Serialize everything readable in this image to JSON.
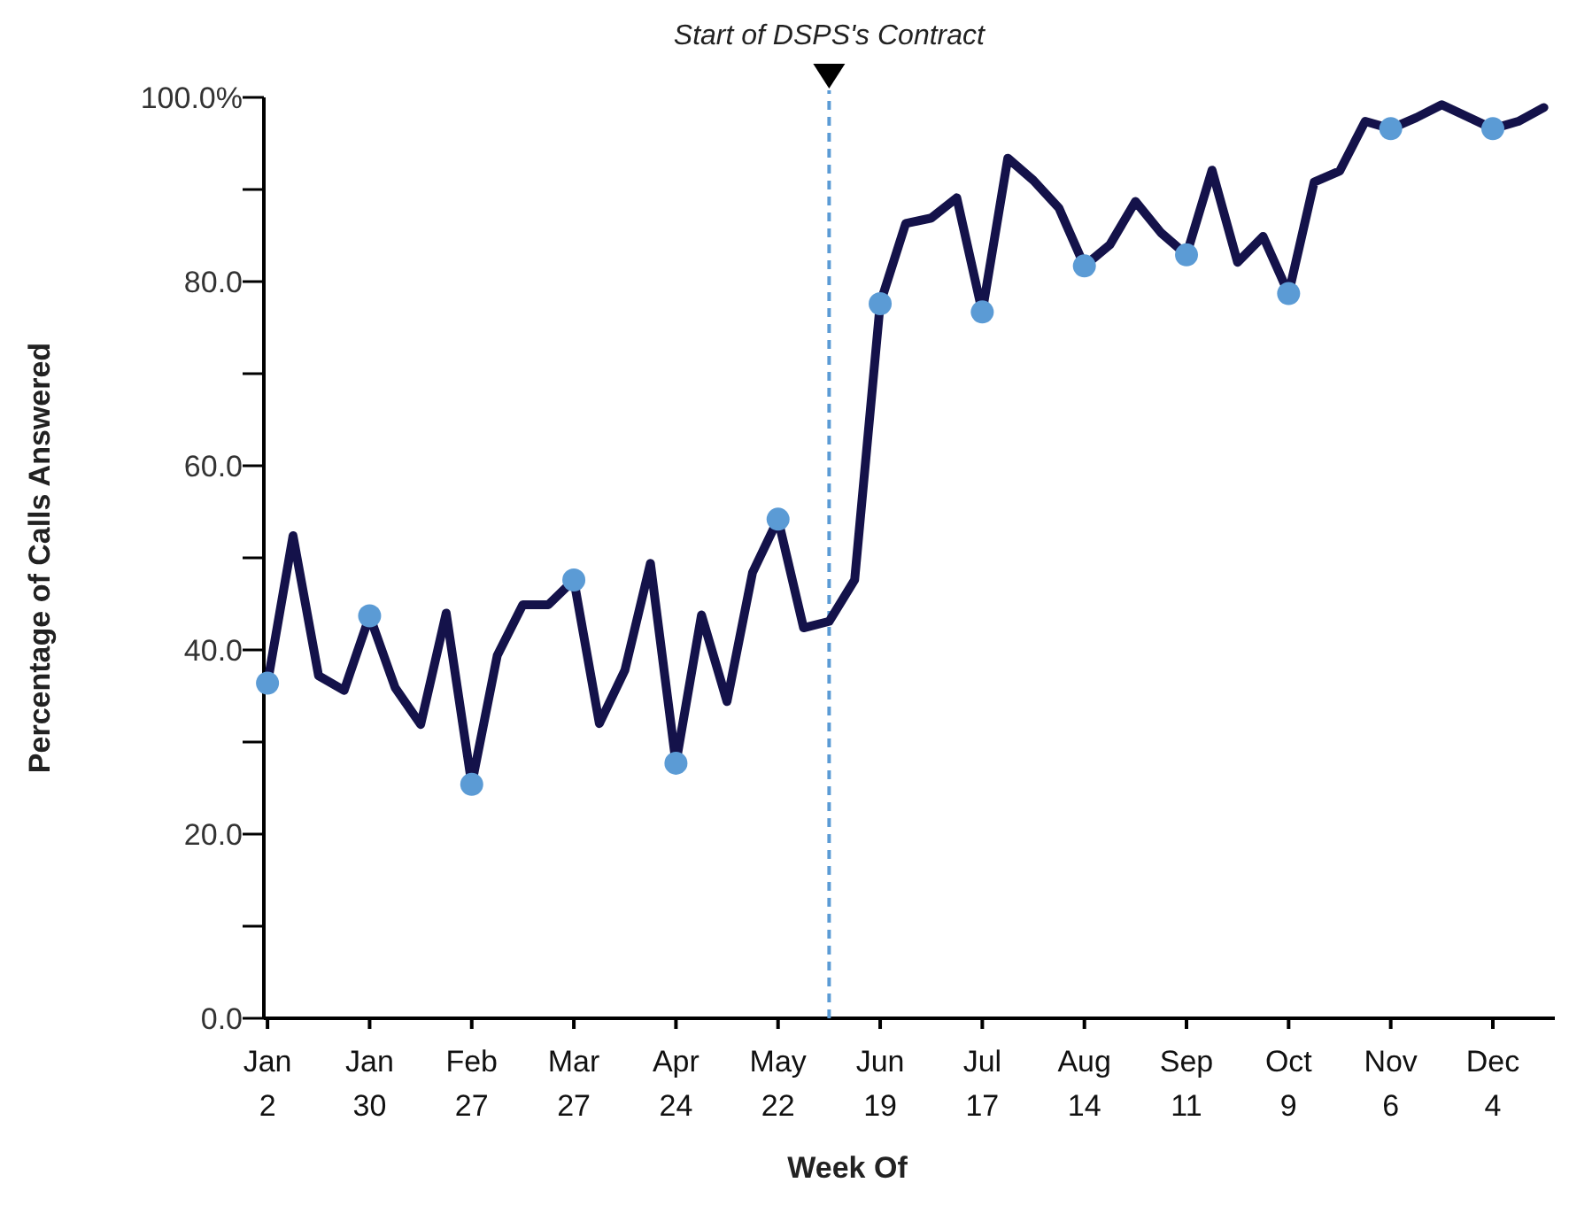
{
  "chart_data": {
    "type": "line",
    "xlabel": "Week Of",
    "ylabel": "Percentage of Calls Answered",
    "xlim": [
      "--01-01",
      "--12-21"
    ],
    "xticks": [
      {
        "value": "--01-02",
        "label": "Jan 2"
      },
      {
        "value": "--01-30",
        "label": "Jan 30"
      },
      {
        "value": "--02-27",
        "label": "Feb 27"
      },
      {
        "value": "--03-27",
        "label": "Mar 27"
      },
      {
        "value": "--04-24",
        "label": "Apr 24"
      },
      {
        "value": "--05-22",
        "label": "May 22"
      },
      {
        "value": "--06-19",
        "label": "Jun 19"
      },
      {
        "value": "--07-17",
        "label": "Jul 17"
      },
      {
        "value": "--08-14",
        "label": "Aug 14"
      },
      {
        "value": "--09-11",
        "label": "Sep 11"
      },
      {
        "value": "--10-09",
        "label": "Oct 9"
      },
      {
        "value": "--11-06",
        "label": "Nov 6"
      },
      {
        "value": "--12-04",
        "label": "Dec 4"
      }
    ],
    "ylim": [
      0,
      100
    ],
    "yticks": [
      {
        "value": 0,
        "label": "0.0"
      },
      {
        "value": 10,
        "label": null
      },
      {
        "value": 20,
        "label": "20.0"
      },
      {
        "value": 30,
        "label": null
      },
      {
        "value": 40,
        "label": "40.0"
      },
      {
        "value": 50,
        "label": null
      },
      {
        "value": 60,
        "label": "60.0"
      },
      {
        "value": 70,
        "label": null
      },
      {
        "value": 80,
        "label": "80.0"
      },
      {
        "value": 90,
        "label": null
      },
      {
        "value": 100,
        "label": "100.0%"
      }
    ],
    "grid": false,
    "ref_lines": [
      {
        "axis": "x",
        "value": "--06-05",
        "label": "Start of DSPS's Contract",
        "color": "#5b9bd5",
        "line_style": "dashed"
      }
    ],
    "series": [
      {
        "type": "line",
        "color": "#14124a",
        "marker": "none",
        "line_style": "solid",
        "x": [
          "--01-02",
          "--01-09",
          "--01-16",
          "--01-23",
          "--01-30",
          "--02-06",
          "--02-13",
          "--02-20",
          "--02-27",
          "--03-06",
          "--03-13",
          "--03-20",
          "--03-27",
          "--04-03",
          "--04-10",
          "--04-17",
          "--04-24",
          "--05-01",
          "--05-08",
          "--05-15",
          "--05-22",
          "--05-29",
          "--06-05",
          "--06-12",
          "--06-19",
          "--06-26",
          "--07-03",
          "--07-10",
          "--07-17",
          "--07-24",
          "--07-31",
          "--08-07",
          "--08-14",
          "--08-21",
          "--08-28",
          "--09-04",
          "--09-11",
          "--09-18",
          "--09-25",
          "--10-02",
          "--10-09",
          "--10-16",
          "--10-23",
          "--10-30",
          "--11-06",
          "--11-13",
          "--11-20",
          "--11-27",
          "--12-04",
          "--12-11",
          "--12-18"
        ],
        "values": [
          36.4,
          52.4,
          37.2,
          35.6,
          43.7,
          35.9,
          31.9,
          44.0,
          25.4,
          39.4,
          44.9,
          44.9,
          47.6,
          32.0,
          37.8,
          49.4,
          27.7,
          43.8,
          34.4,
          48.4,
          54.2,
          42.4,
          43.1,
          47.6,
          77.6,
          86.3,
          86.9,
          89.1,
          76.7,
          93.4,
          91.0,
          88.0,
          81.7,
          84.0,
          88.7,
          85.3,
          82.9,
          92.1,
          82.1,
          84.9,
          78.7,
          90.8,
          92.0,
          97.4,
          96.6,
          97.8,
          99.2,
          97.9,
          96.6,
          97.4,
          98.9
        ]
      },
      {
        "type": "scatter",
        "color": "#5b9bd5",
        "marker": "circle",
        "x": [
          "--01-02",
          "--01-30",
          "--02-27",
          "--03-27",
          "--04-24",
          "--05-22",
          "--06-19",
          "--07-17",
          "--08-14",
          "--09-11",
          "--10-09",
          "--11-06",
          "--12-04"
        ],
        "values": [
          36.4,
          43.7,
          25.4,
          47.6,
          27.7,
          54.2,
          77.6,
          76.7,
          81.7,
          82.9,
          78.7,
          96.6,
          96.6
        ]
      }
    ]
  }
}
